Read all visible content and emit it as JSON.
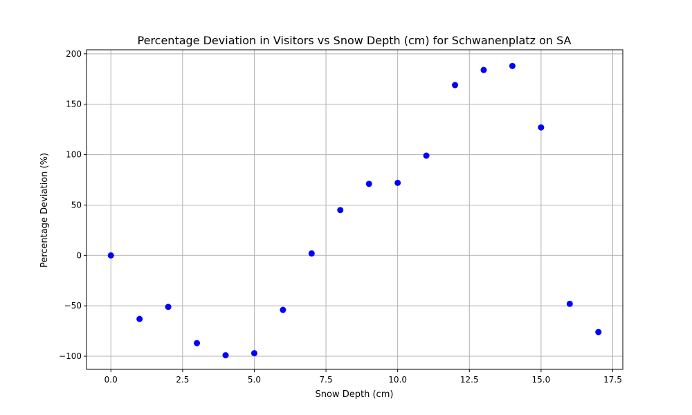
{
  "chart_data": {
    "type": "scatter",
    "title": "Percentage Deviation in Visitors vs Snow Depth (cm) for Schwanenplatz on SA",
    "xlabel": "Snow Depth (cm)",
    "ylabel": "Percentage Deviation (%)",
    "xlim": [
      -0.85,
      17.85
    ],
    "ylim": [
      -113,
      204
    ],
    "x_ticks": [
      0.0,
      2.5,
      5.0,
      7.5,
      10.0,
      12.5,
      15.0,
      17.5
    ],
    "x_tick_labels": [
      "0.0",
      "2.5",
      "5.0",
      "7.5",
      "10.0",
      "12.5",
      "15.0",
      "17.5"
    ],
    "y_ticks": [
      -100,
      -50,
      0,
      50,
      100,
      150,
      200
    ],
    "y_tick_labels": [
      "−100",
      "−50",
      "0",
      "50",
      "100",
      "150",
      "200"
    ],
    "grid": true,
    "marker_color": "#0000ff",
    "points": [
      {
        "x": 0,
        "y": 0
      },
      {
        "x": 1,
        "y": -63
      },
      {
        "x": 2,
        "y": -51
      },
      {
        "x": 3,
        "y": -87
      },
      {
        "x": 4,
        "y": -99
      },
      {
        "x": 5,
        "y": -97
      },
      {
        "x": 6,
        "y": -54
      },
      {
        "x": 7,
        "y": 2
      },
      {
        "x": 8,
        "y": 45
      },
      {
        "x": 9,
        "y": 71
      },
      {
        "x": 10,
        "y": 72
      },
      {
        "x": 11,
        "y": 99
      },
      {
        "x": 12,
        "y": 169
      },
      {
        "x": 13,
        "y": 184
      },
      {
        "x": 14,
        "y": 188
      },
      {
        "x": 15,
        "y": 127
      },
      {
        "x": 16,
        "y": -48
      },
      {
        "x": 17,
        "y": -76
      }
    ]
  }
}
